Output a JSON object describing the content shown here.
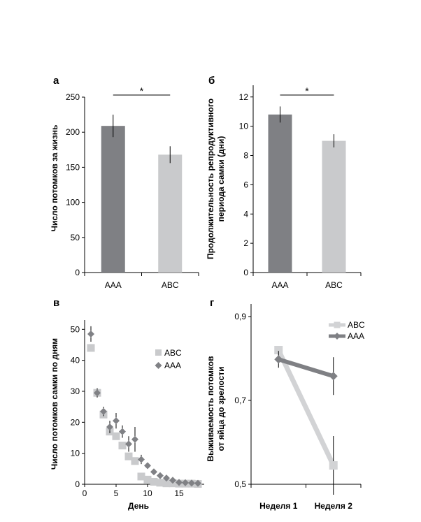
{
  "colors": {
    "aaa": "#7f8084",
    "abc": "#c9cacc",
    "abc_light": "#d2d3d5",
    "aaa_marker": "#808185"
  },
  "chart_data": [
    {
      "panel": "a",
      "type": "bar",
      "title": "",
      "ylabel": "Число потомков за жизнь",
      "xlabel": "",
      "categories": [
        "AAA",
        "ABC"
      ],
      "values": [
        209,
        168
      ],
      "errors": [
        16,
        12
      ],
      "ylim": [
        0,
        250
      ],
      "yticks": [
        0,
        50,
        100,
        150,
        200,
        250
      ],
      "significance": "*"
    },
    {
      "panel": "б",
      "type": "bar",
      "title": "",
      "ylabel_line1": "Продолжительность репродуктивного",
      "ylabel_line2": "периода самки (дни)",
      "xlabel": "",
      "categories": [
        "AAA",
        "ABC"
      ],
      "values": [
        10.8,
        9.0
      ],
      "errors": [
        0.55,
        0.45
      ],
      "ylim": [
        0,
        12.8
      ],
      "yticks": [
        0,
        2,
        4,
        6,
        8,
        10,
        12
      ],
      "significance": "*"
    },
    {
      "panel": "в",
      "type": "scatter",
      "title": "",
      "ylabel": "Число потомков самки по дням",
      "xlabel": "День",
      "xlim": [
        0,
        19
      ],
      "ylim": [
        0,
        53
      ],
      "xticks": [
        0,
        5,
        10,
        15
      ],
      "yticks": [
        0,
        10,
        20,
        30,
        40,
        50
      ],
      "legend": [
        "ABC",
        "AAA"
      ],
      "series": [
        {
          "name": "ABC",
          "marker": "square",
          "x": [
            1,
            2,
            3,
            4,
            5,
            6,
            7,
            8,
            9,
            10,
            11,
            12,
            13,
            14,
            15,
            16,
            17,
            18
          ],
          "y": [
            44,
            29.5,
            22.5,
            17,
            15.5,
            12.5,
            9,
            7.5,
            2.5,
            1.5,
            0.8,
            0.5,
            0.3,
            0.3,
            0.2,
            0.2,
            0.2,
            0.1
          ],
          "err": [
            2,
            1,
            1.5,
            1.5,
            1.5,
            1.5,
            1,
            1,
            0.5,
            0.5,
            0.3,
            0.3,
            0.2,
            0.2,
            0.2,
            0.2,
            0.2,
            0.1
          ]
        },
        {
          "name": "AAA",
          "marker": "diamond",
          "x": [
            1,
            2,
            3,
            4,
            5,
            6,
            7,
            8,
            9,
            10,
            11,
            12,
            13,
            14,
            15,
            16,
            17,
            18
          ],
          "y": [
            48.5,
            29.5,
            23.5,
            18.5,
            20.5,
            17,
            13,
            14.5,
            8,
            6,
            4,
            2.8,
            2,
            1.3,
            0.6,
            0.5,
            0.4,
            0.3
          ],
          "err": [
            2.5,
            1.5,
            1.5,
            2,
            2.5,
            2,
            2.5,
            4,
            1.5,
            1,
            0.8,
            0.6,
            0.5,
            0.4,
            0.3,
            0.3,
            0.3,
            0.2
          ]
        }
      ]
    },
    {
      "panel": "г",
      "type": "line",
      "title": "",
      "ylabel_line1": "Выживаемость потомков",
      "ylabel_line2": "от яйца до зрелости",
      "xlabel": "",
      "categories": [
        "Неделя 1",
        "Неделя 2"
      ],
      "ylim": [
        0.5,
        0.93
      ],
      "yticks": [
        0.5,
        0.7,
        0.9
      ],
      "ytick_labels": [
        "0,5",
        "0,7",
        "0,9"
      ],
      "legend": [
        "ABC",
        "AAA"
      ],
      "series": [
        {
          "name": "ABC",
          "marker": "square",
          "values": [
            0.82,
            0.545
          ],
          "err": [
            0.01,
            0.07
          ]
        },
        {
          "name": "AAA",
          "marker": "diamond",
          "values": [
            0.798,
            0.758
          ],
          "err": [
            0.02,
            0.045
          ]
        }
      ]
    }
  ]
}
